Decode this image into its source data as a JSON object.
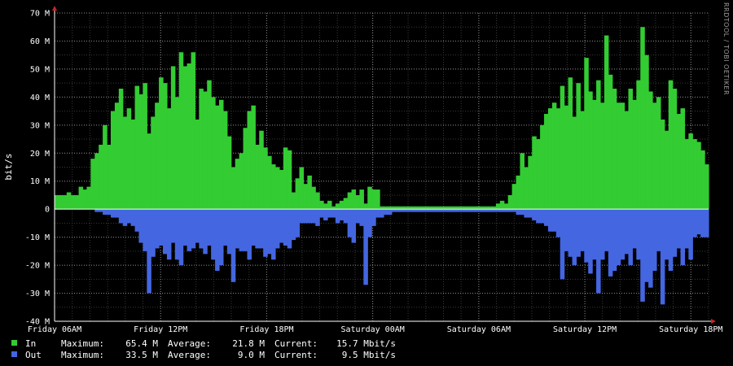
{
  "chart_data": {
    "type": "area",
    "ylabel": "bit/s",
    "credit": "RRDTOOL / TOBI OETIKER",
    "ylim": [
      -40000000,
      70000000
    ],
    "yticks": [
      {
        "value": 70000000,
        "label": "70 M"
      },
      {
        "value": 60000000,
        "label": "60 M"
      },
      {
        "value": 50000000,
        "label": "50 M"
      },
      {
        "value": 40000000,
        "label": "40 M"
      },
      {
        "value": 30000000,
        "label": "30 M"
      },
      {
        "value": 20000000,
        "label": "20 M"
      },
      {
        "value": 10000000,
        "label": "10 M"
      },
      {
        "value": 0,
        "label": "0"
      },
      {
        "value": -10000000,
        "label": "-10 M"
      },
      {
        "value": -20000000,
        "label": "-20 M"
      },
      {
        "value": -30000000,
        "label": "-30 M"
      },
      {
        "value": -40000000,
        "label": "-40 M"
      }
    ],
    "xlim_hours": [
      0,
      37
    ],
    "xticks": [
      {
        "hour": 0,
        "label": "Friday 06AM"
      },
      {
        "hour": 6,
        "label": "Friday 12PM"
      },
      {
        "hour": 12,
        "label": "Friday 18PM"
      },
      {
        "hour": 18,
        "label": "Saturday 00AM"
      },
      {
        "hour": 24,
        "label": "Saturday 06AM"
      },
      {
        "hour": 30,
        "label": "Saturday 12PM"
      },
      {
        "hour": 36,
        "label": "Saturday 18PM"
      }
    ],
    "grid": true,
    "series": [
      {
        "name": "In",
        "color": "#33cc33",
        "unit": "Mbit/s",
        "values_mbit": [
          5,
          5,
          5,
          6,
          5,
          5,
          8,
          7,
          8,
          18,
          20,
          23,
          30,
          23,
          35,
          38,
          43,
          33,
          36,
          32,
          44,
          41,
          45,
          27,
          33,
          38,
          47,
          45,
          36,
          51,
          40,
          56,
          51,
          52,
          56,
          32,
          43,
          42,
          46,
          40,
          37,
          39,
          35,
          26,
          15,
          18,
          20,
          29,
          35,
          37,
          23,
          28,
          22,
          19,
          16,
          15,
          14,
          22,
          21,
          6,
          11,
          15,
          9,
          12,
          8,
          6,
          3,
          2,
          3,
          1,
          2,
          3,
          4,
          6,
          7,
          5,
          7,
          2,
          8,
          7,
          7,
          1,
          1,
          1,
          1,
          1,
          1,
          1,
          1,
          1,
          1,
          1,
          1,
          1,
          1,
          1,
          1,
          1,
          1,
          1,
          1,
          1,
          1,
          1,
          1,
          1,
          1,
          1,
          1,
          1,
          2,
          3,
          2,
          5,
          9,
          12,
          20,
          15,
          19,
          26,
          25,
          30,
          34,
          36,
          38,
          36,
          44,
          37,
          47,
          33,
          45,
          35,
          54,
          42,
          39,
          46,
          38,
          62,
          48,
          43,
          38,
          38,
          35,
          43,
          39,
          46,
          65,
          55,
          42,
          38,
          40,
          32,
          28,
          46,
          43,
          34,
          36,
          25,
          27,
          25,
          24,
          21,
          16
        ]
      },
      {
        "name": "Out",
        "color": "#4466e0",
        "unit": "Mbit/s",
        "values_mbit": [
          0,
          0,
          0,
          0,
          0,
          0,
          0,
          0,
          0,
          0,
          1,
          1,
          2,
          2,
          3,
          3,
          5,
          6,
          5,
          6,
          8,
          12,
          15,
          30,
          17,
          14,
          13,
          16,
          18,
          12,
          18,
          20,
          13,
          15,
          14,
          12,
          14,
          16,
          13,
          18,
          22,
          20,
          13,
          16,
          26,
          14,
          15,
          15,
          18,
          13,
          14,
          14,
          17,
          16,
          18,
          14,
          12,
          13,
          14,
          11,
          10,
          5,
          5,
          5,
          5,
          6,
          3,
          4,
          3,
          3,
          5,
          4,
          5,
          10,
          12,
          5,
          6,
          27,
          10,
          6,
          3,
          3,
          2,
          2,
          1,
          1,
          1,
          1,
          1,
          1,
          1,
          1,
          1,
          1,
          1,
          1,
          1,
          1,
          1,
          1,
          1,
          1,
          1,
          1,
          1,
          1,
          1,
          1,
          1,
          1,
          1,
          1,
          1,
          1,
          1,
          2,
          2,
          3,
          3,
          4,
          5,
          5,
          6,
          8,
          8,
          10,
          25,
          15,
          17,
          20,
          17,
          15,
          19,
          23,
          18,
          30,
          18,
          15,
          24,
          22,
          20,
          18,
          16,
          20,
          14,
          18,
          33,
          26,
          28,
          22,
          15,
          34,
          18,
          22,
          17,
          14,
          20,
          14,
          18,
          10,
          9,
          10,
          10
        ]
      }
    ],
    "legend": [
      {
        "name": "In",
        "maximum": "65.4 M",
        "average": "21.8 M",
        "current": "15.7 Mbit/s"
      },
      {
        "name": "Out",
        "maximum": "33.5 M",
        "average": "9.0 M",
        "current": "9.5 Mbit/s"
      }
    ]
  },
  "legend_labels": {
    "maximum": "Maximum:",
    "average": "Average:",
    "current": "Current:"
  }
}
